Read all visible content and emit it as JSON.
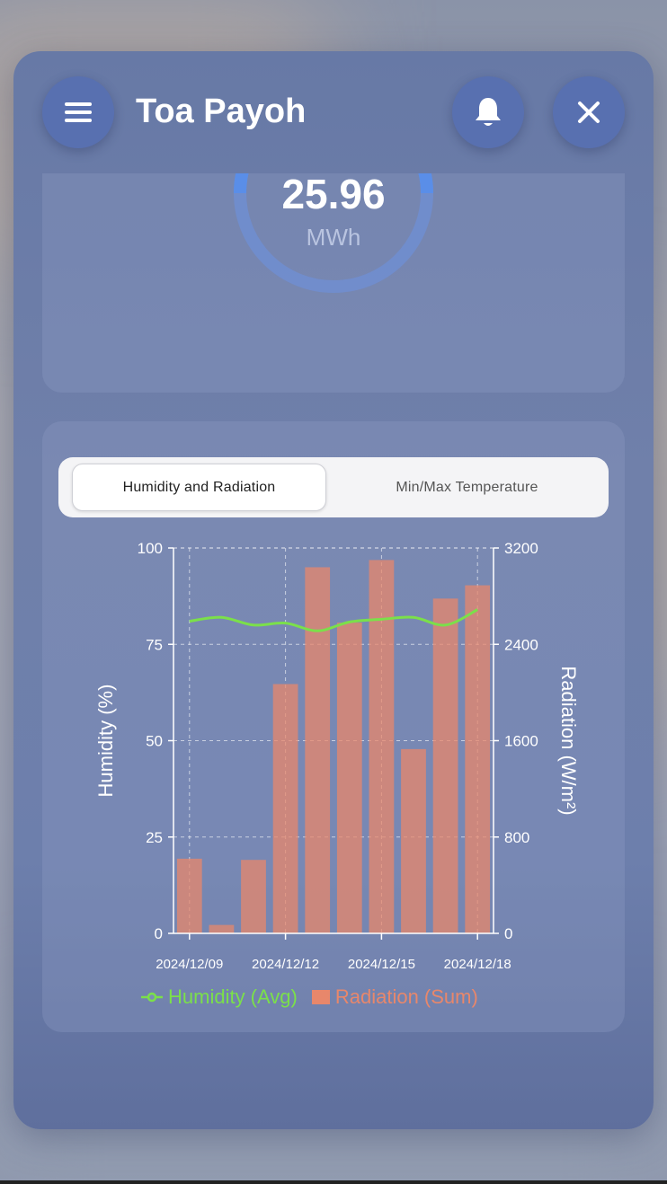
{
  "header": {
    "title": "Toa Payoh",
    "menu_icon": "hamburger-menu-icon",
    "bell_icon": "bell-icon",
    "close_icon": "close-icon"
  },
  "energy_card": {
    "value": "25.96",
    "unit": "MWh",
    "gauge_color": "#5a8ee8"
  },
  "tabs": [
    {
      "label": "Humidity and Radiation",
      "active": true
    },
    {
      "label": "Min/Max Temperature",
      "active": false
    }
  ],
  "chart_data": {
    "type": "bar",
    "x": [
      "2024/12/09",
      "2024/12/10",
      "2024/12/11",
      "2024/12/12",
      "2024/12/13",
      "2024/12/14",
      "2024/12/15",
      "2024/12/16",
      "2024/12/17",
      "2024/12/18"
    ],
    "x_tick_labels": [
      "2024/12/09",
      "2024/12/12",
      "2024/12/15",
      "2024/12/18"
    ],
    "series": [
      {
        "name": "Radiation (Sum)",
        "type": "bar",
        "axis": "right",
        "color": "#e8876b",
        "values": [
          620,
          70,
          610,
          2070,
          3040,
          2580,
          3100,
          1530,
          2780,
          2890
        ]
      },
      {
        "name": "Humidity (Avg)",
        "type": "line",
        "axis": "left",
        "color": "#7be04a",
        "values": [
          81,
          82,
          80,
          80.5,
          78.5,
          80.8,
          81.5,
          82,
          80,
          84
        ]
      }
    ],
    "ylabel_left": "Humidity (%)",
    "ylabel_right": "Radiation (W/m²)",
    "ylim_left": [
      0,
      100
    ],
    "ylim_right": [
      0,
      3200
    ],
    "yticks_left": [
      "0",
      "25",
      "50",
      "75",
      "100"
    ],
    "yticks_right": [
      "0",
      "800",
      "1600",
      "2400",
      "3200"
    ],
    "grid": true,
    "legend_position": "bottom"
  }
}
